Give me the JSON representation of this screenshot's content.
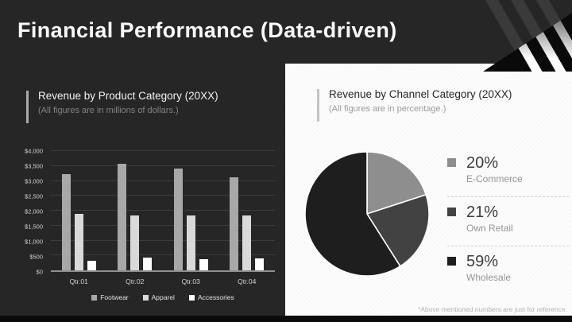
{
  "slide": {
    "title": "Financial Performance (Data-driven)"
  },
  "left_panel": {
    "title": "Revenue by Product Category (20XX)",
    "subtitle": "(All figures are in millions of dollars.)"
  },
  "right_panel": {
    "title": "Revenue by Channel Category (20XX)",
    "subtitle": "(All figures are in percentage.)",
    "footnote": "*Above mentioned numbers are just for reference."
  },
  "chart_data": [
    {
      "type": "bar",
      "title": "Revenue by Product Category (20XX)",
      "units": "millions of dollars",
      "categories": [
        "Qtr.01",
        "Qtr.02",
        "Qtr.03",
        "Qtr.04"
      ],
      "series": [
        {
          "name": "Footwear",
          "color": "#a8a8a8",
          "values": [
            3230,
            3570,
            3410,
            3110
          ]
        },
        {
          "name": "Apparel",
          "color": "#d9d9d9",
          "values": [
            1890,
            1830,
            1830,
            1830
          ]
        },
        {
          "name": "Accessories",
          "color": "#ffffff",
          "values": [
            310,
            430,
            380,
            400
          ]
        }
      ],
      "ylim": [
        0,
        4000
      ],
      "ytick_step": 500,
      "ytick_labels": [
        "$0",
        "$500",
        "$1,000",
        "$1,500",
        "$2,000",
        "$2,500",
        "$3,000",
        "$3,500",
        "$4,000"
      ],
      "grid": true,
      "legend_position": "bottom"
    },
    {
      "type": "pie",
      "title": "Revenue by Channel Category (20XX)",
      "units": "percentage",
      "start_angle_deg": 0,
      "direction": "clockwise",
      "slices": [
        {
          "label": "E-Commerce",
          "value": 20,
          "display": "20%",
          "color": "#8e8e8e"
        },
        {
          "label": "Own Retail",
          "value": 21,
          "display": "21%",
          "color": "#424242"
        },
        {
          "label": "Wholesale",
          "value": 59,
          "display": "59%",
          "color": "#1e1e1e"
        }
      ],
      "legend_position": "right"
    }
  ],
  "colors": {
    "slide_bg": "#262626",
    "panel_bg": "#fcfcfc",
    "accent_dark_panel": "#a9a9a9",
    "accent_light_panel": "#c3c3c3",
    "bottom_strip": "#0b0b0b"
  }
}
